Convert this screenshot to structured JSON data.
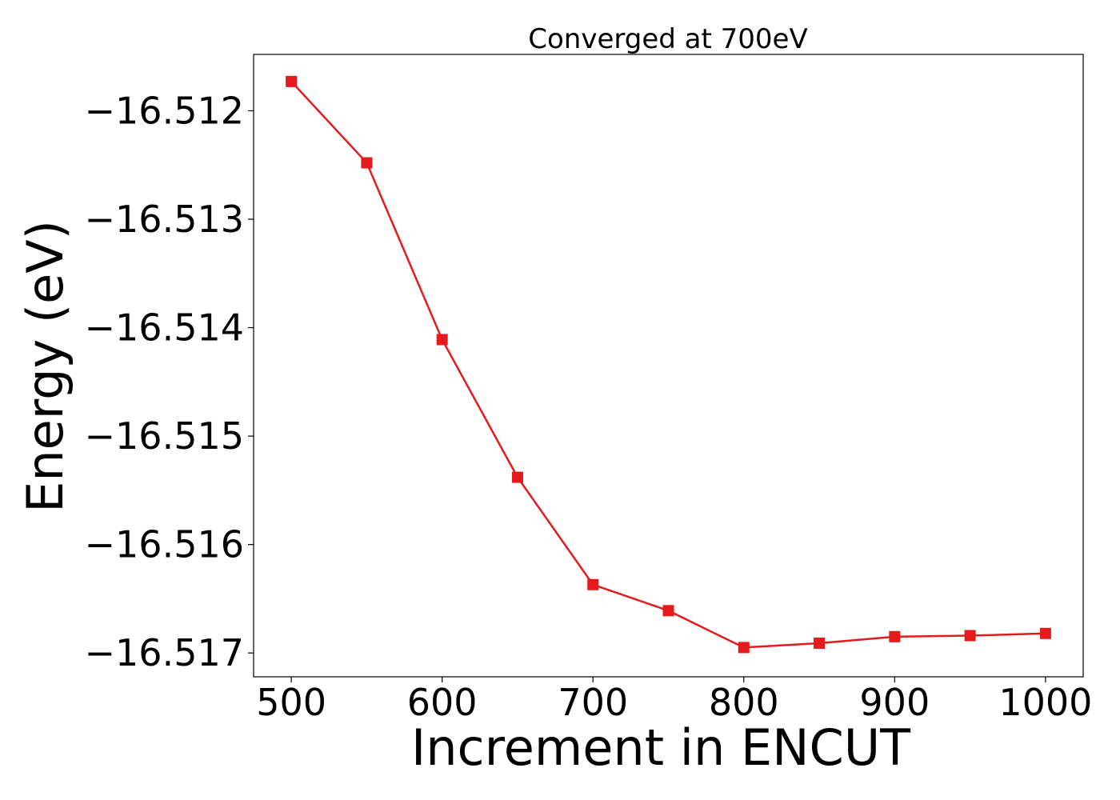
{
  "chart_data": {
    "type": "line",
    "title": "Converged at 700eV",
    "xlabel": "Increment in ENCUT",
    "ylabel": "Energy (eV)",
    "xlim": [
      475,
      1025
    ],
    "ylim": [
      -16.51722,
      -16.51148
    ],
    "xticks": [
      500,
      600,
      700,
      800,
      900,
      1000
    ],
    "yticks": [
      -16.512,
      -16.513,
      -16.514,
      -16.515,
      -16.516,
      -16.517
    ],
    "yticklabels": [
      "−16.512",
      "−16.513",
      "−16.514",
      "−16.515",
      "−16.516",
      "−16.517"
    ],
    "grid": false,
    "series": [
      {
        "color": "#e41a1c",
        "marker": "square",
        "x": [
          500,
          550,
          600,
          650,
          700,
          750,
          800,
          850,
          900,
          950,
          1000
        ],
        "y": [
          -16.51173,
          -16.51248,
          -16.51411,
          -16.51538,
          -16.51637,
          -16.51661,
          -16.51695,
          -16.51691,
          -16.51685,
          -16.51684,
          -16.51682
        ]
      }
    ]
  }
}
